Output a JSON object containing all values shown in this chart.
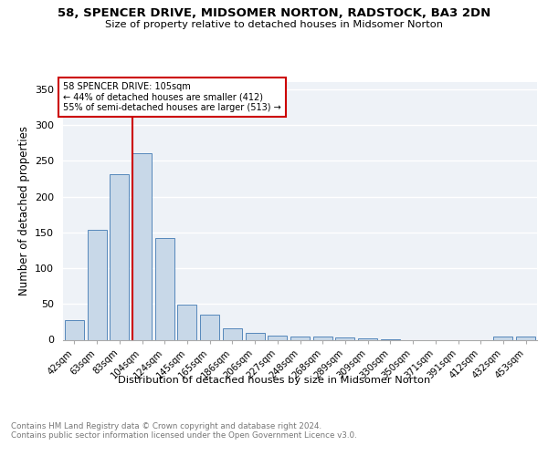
{
  "title_line1": "58, SPENCER DRIVE, MIDSOMER NORTON, RADSTOCK, BA3 2DN",
  "title_line2": "Size of property relative to detached houses in Midsomer Norton",
  "xlabel": "Distribution of detached houses by size in Midsomer Norton",
  "ylabel": "Number of detached properties",
  "categories": [
    "42sqm",
    "63sqm",
    "83sqm",
    "104sqm",
    "124sqm",
    "145sqm",
    "165sqm",
    "186sqm",
    "206sqm",
    "227sqm",
    "248sqm",
    "268sqm",
    "289sqm",
    "309sqm",
    "330sqm",
    "350sqm",
    "371sqm",
    "391sqm",
    "412sqm",
    "432sqm",
    "453sqm"
  ],
  "values": [
    28,
    153,
    231,
    260,
    142,
    49,
    35,
    16,
    10,
    6,
    5,
    4,
    3,
    2,
    1,
    0,
    0,
    0,
    0,
    4,
    4
  ],
  "bar_color": "#c8d8e8",
  "bar_edge_color": "#5588bb",
  "property_label": "58 SPENCER DRIVE: 105sqm",
  "annotation_line2": "← 44% of detached houses are smaller (412)",
  "annotation_line3": "55% of semi-detached houses are larger (513) →",
  "vline_color": "#cc0000",
  "annotation_box_color": "#cc0000",
  "background_color": "#eef2f7",
  "footer_text": "Contains HM Land Registry data © Crown copyright and database right 2024.\nContains public sector information licensed under the Open Government Licence v3.0.",
  "ylim": [
    0,
    360
  ],
  "yticks": [
    0,
    50,
    100,
    150,
    200,
    250,
    300,
    350
  ]
}
